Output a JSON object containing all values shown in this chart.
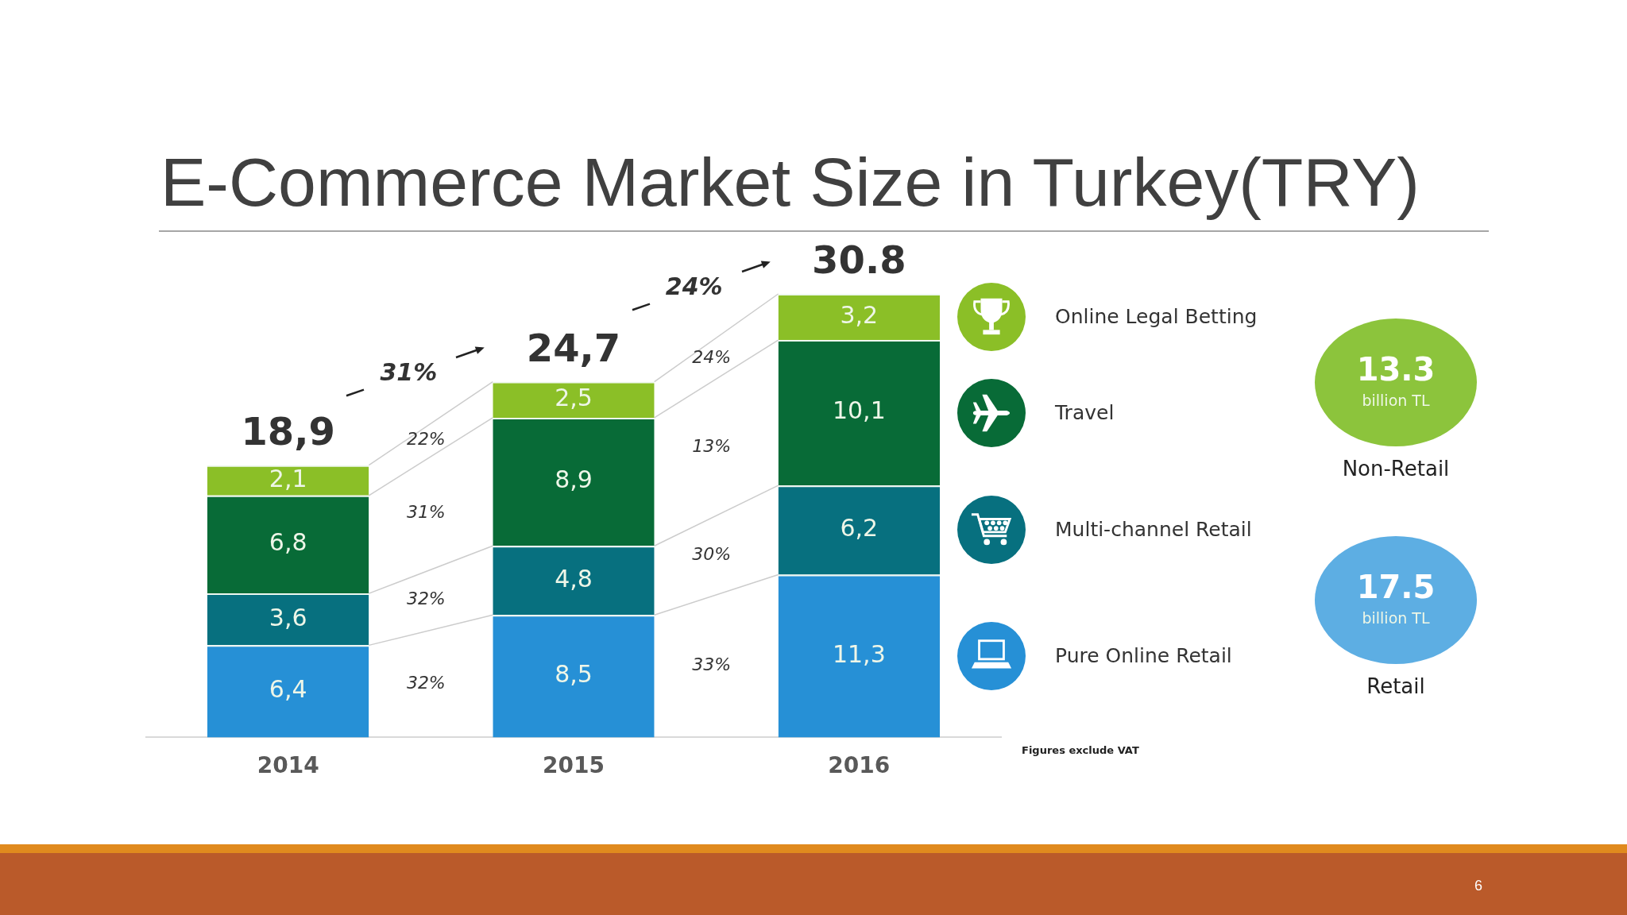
{
  "chart_data": [
    {
      "type": "bar",
      "title": "E-Commerce Market Size in Turkey(TRY)",
      "categories": [
        "2014",
        "2015",
        "2016"
      ],
      "stacked": true,
      "legend": "right",
      "tick_labels": "x",
      "series": [
        {
          "name": "Pure Online Retail",
          "color": "#2690d6",
          "values": [
            6.4,
            8.5,
            11.3
          ],
          "value_labels": [
            "6,4",
            "8,5",
            "11,3"
          ]
        },
        {
          "name": "Multi-channel Retail",
          "color": "#07707f",
          "values": [
            3.6,
            4.8,
            6.2
          ],
          "value_labels": [
            "3,6",
            "4,8",
            "6,2"
          ]
        },
        {
          "name": "Travel",
          "color": "#086b37",
          "values": [
            6.8,
            8.9,
            10.1
          ],
          "value_labels": [
            "6,8",
            "8,9",
            "10,1"
          ]
        },
        {
          "name": "Online Legal Betting",
          "color": "#8bbf27",
          "values": [
            2.1,
            2.5,
            3.2
          ],
          "value_labels": [
            "2,1",
            "2,5",
            "3,2"
          ]
        }
      ],
      "totals": [
        "18,9",
        "24,7",
        "30.8"
      ],
      "annotations": [
        "31%",
        "24%",
        "32%",
        "32%",
        "31%",
        "22%",
        "33%",
        "30%",
        "13%",
        "24%",
        "Figures exclude VAT",
        "6"
      ]
    },
    {
      "type": "other",
      "annotations": [
        "13.3",
        "billion TL",
        "Non-Retail",
        "17.5",
        "billion TL",
        "Retail"
      ]
    }
  ]
}
